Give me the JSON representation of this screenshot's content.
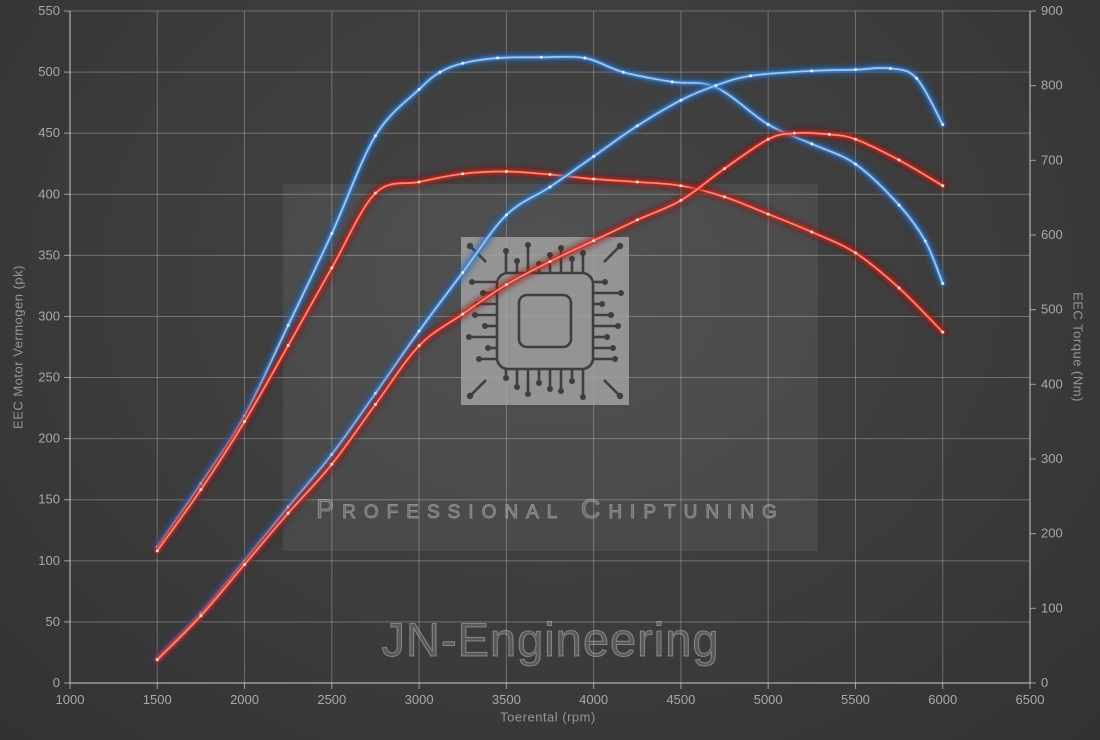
{
  "watermark": {
    "title": "JN-Engineering",
    "subtitle": "Professional Chiptuning",
    "chip_icon": "microchip-circuit-icon"
  },
  "colors": {
    "background": "#3c3c3c",
    "grid": "rgba(200,200,200,0.38)",
    "axis": "rgba(215,215,215,0.65)",
    "tick_text": "#a9a9a9",
    "blue_core": "#9ec9f0",
    "blue_mid": "#3d85d0",
    "blue_glow": "#1c5fae",
    "blue_dot": "#eaf4ff",
    "red_core": "#ff8878",
    "red_mid": "#d02818",
    "red_glow": "#8d0f0f",
    "red_dot": "#ffeae6",
    "watermark_text": "#9aa0a3"
  },
  "chart_data": {
    "type": "line",
    "title": "",
    "xlabel": "Toerental (rpm)",
    "ylabel_left": "EEC Motor Vermogen (pk)",
    "ylabel_right": "EEC Torque (Nm)",
    "x_range": [
      1000,
      6500
    ],
    "y_left_range": [
      0,
      550
    ],
    "y_right_range": [
      0,
      900
    ],
    "x_ticks": [
      1000,
      1500,
      2000,
      2500,
      3000,
      3500,
      4000,
      4500,
      5000,
      5500,
      6000,
      6500
    ],
    "y_left_ticks": [
      0,
      50,
      100,
      150,
      200,
      250,
      300,
      350,
      400,
      450,
      500,
      550
    ],
    "y_right_ticks": [
      0,
      100,
      200,
      300,
      400,
      500,
      600,
      700,
      800,
      900
    ],
    "grid": true,
    "legend": "none",
    "series": [
      {
        "name": "blue-torque",
        "color_key": "blue",
        "axis": "right",
        "unit": "Nm",
        "points": [
          [
            1500,
            182
          ],
          [
            1750,
            267
          ],
          [
            2000,
            358
          ],
          [
            2250,
            479
          ],
          [
            2500,
            602
          ],
          [
            2750,
            733
          ],
          [
            3000,
            795
          ],
          [
            3120,
            818
          ],
          [
            3250,
            830
          ],
          [
            3450,
            837
          ],
          [
            3700,
            838
          ],
          [
            3950,
            837
          ],
          [
            4170,
            818
          ],
          [
            4450,
            805
          ],
          [
            4700,
            798
          ],
          [
            5000,
            748
          ],
          [
            5250,
            722
          ],
          [
            5500,
            695
          ],
          [
            5750,
            640
          ],
          [
            5900,
            592
          ],
          [
            6000,
            535
          ]
        ]
      },
      {
        "name": "red-torque",
        "color_key": "red",
        "axis": "right",
        "unit": "Nm",
        "points": [
          [
            1500,
            177
          ],
          [
            1750,
            259
          ],
          [
            2000,
            350
          ],
          [
            2250,
            452
          ],
          [
            2500,
            556
          ],
          [
            2750,
            656
          ],
          [
            3000,
            671
          ],
          [
            3250,
            682
          ],
          [
            3500,
            685
          ],
          [
            3750,
            681
          ],
          [
            4000,
            675
          ],
          [
            4250,
            671
          ],
          [
            4500,
            666
          ],
          [
            4750,
            651
          ],
          [
            5000,
            628
          ],
          [
            5250,
            604
          ],
          [
            5500,
            576
          ],
          [
            5750,
            529
          ],
          [
            6000,
            470
          ]
        ]
      },
      {
        "name": "blue-power",
        "color_key": "blue",
        "axis": "left",
        "unit": "pk",
        "points": [
          [
            1500,
            20
          ],
          [
            1750,
            57
          ],
          [
            2000,
            100
          ],
          [
            2250,
            144
          ],
          [
            2500,
            187
          ],
          [
            2750,
            237
          ],
          [
            3000,
            288
          ],
          [
            3250,
            336
          ],
          [
            3500,
            383
          ],
          [
            3750,
            406
          ],
          [
            4000,
            431
          ],
          [
            4250,
            456
          ],
          [
            4500,
            477
          ],
          [
            4700,
            489
          ],
          [
            4900,
            497
          ],
          [
            5250,
            501
          ],
          [
            5500,
            502
          ],
          [
            5700,
            503
          ],
          [
            5850,
            495
          ],
          [
            6000,
            457
          ]
        ]
      },
      {
        "name": "red-power",
        "color_key": "red",
        "axis": "left",
        "unit": "pk",
        "points": [
          [
            1500,
            19
          ],
          [
            1750,
            55
          ],
          [
            2000,
            97
          ],
          [
            2250,
            139
          ],
          [
            2500,
            179
          ],
          [
            2750,
            228
          ],
          [
            3000,
            276
          ],
          [
            3250,
            302
          ],
          [
            3500,
            326
          ],
          [
            3750,
            345
          ],
          [
            4000,
            362
          ],
          [
            4250,
            379
          ],
          [
            4500,
            395
          ],
          [
            4750,
            421
          ],
          [
            5000,
            445
          ],
          [
            5150,
            450
          ],
          [
            5350,
            449
          ],
          [
            5500,
            445
          ],
          [
            5750,
            428
          ],
          [
            6000,
            407
          ]
        ]
      }
    ]
  }
}
